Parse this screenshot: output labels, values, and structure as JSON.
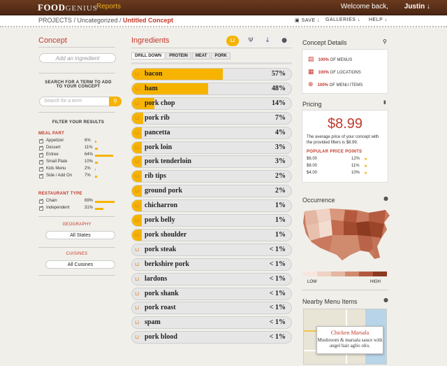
{
  "header": {
    "logo": "FOOD",
    "logo2": "GENIUS",
    "reports": "Reports",
    "welcome": "Welcome back,",
    "user": "Justin ↓"
  },
  "breadcrumb": {
    "root": "PROJECTS / Uncategorized / ",
    "current": "Untitled Concept"
  },
  "actions": {
    "save": "SAVE ↓",
    "galleries": "GALLERIES ↓",
    "help": "HELP ↓"
  },
  "concept": {
    "title": "Concept",
    "add_placeholder": "Add an ingredient",
    "search_hint": "SEARCH FOR A TERM TO ADD TO YOUR CONCEPT",
    "search_placeholder": "Search for a term",
    "filter_title": "FILTER YOUR RESULTS",
    "meal_part_title": "MEAL PART",
    "meal_part": [
      {
        "label": "Appetizer",
        "pct": "6%",
        "value": 6
      },
      {
        "label": "Dessert",
        "pct": "11%",
        "value": 11
      },
      {
        "label": "Entree",
        "pct": "64%",
        "value": 64
      },
      {
        "label": "Small Plate",
        "pct": "10%",
        "value": 10
      },
      {
        "label": "Kids Menu",
        "pct": "2%",
        "value": 2
      },
      {
        "label": "Side / Add On",
        "pct": "7%",
        "value": 7
      }
    ],
    "restaurant_type_title": "RESTAURANT TYPE",
    "restaurant_type": [
      {
        "label": "Chain",
        "pct": "69%",
        "value": 69
      },
      {
        "label": "Independent",
        "pct": "31%",
        "value": 31
      }
    ],
    "geography_title": "GEOGRAPHY",
    "geography_value": "All States",
    "cuisines_title": "CUISINES",
    "cuisines_value": "All Cuisines"
  },
  "ingredients": {
    "title": "Ingredients",
    "drill": [
      "DRILL DOWN",
      "PROTEIN",
      "MEAT",
      "PORK"
    ],
    "rows": [
      {
        "name": "bacon",
        "pct": "57%",
        "fill": 57
      },
      {
        "name": "ham",
        "pct": "48%",
        "fill": 48
      },
      {
        "name": "pork chop",
        "pct": "14%",
        "fill": 14
      },
      {
        "name": "pork rib",
        "pct": "7%",
        "fill": 7
      },
      {
        "name": "pancetta",
        "pct": "4%",
        "fill": 4
      },
      {
        "name": "pork loin",
        "pct": "3%",
        "fill": 3
      },
      {
        "name": "pork tenderloin",
        "pct": "3%",
        "fill": 3
      },
      {
        "name": "rib tips",
        "pct": "2%",
        "fill": 2
      },
      {
        "name": "ground pork",
        "pct": "2%",
        "fill": 2
      },
      {
        "name": "chicharron",
        "pct": "1%",
        "fill": 1
      },
      {
        "name": "pork belly",
        "pct": "1%",
        "fill": 1
      },
      {
        "name": "pork shoulder",
        "pct": "1%",
        "fill": 1
      },
      {
        "name": "pork steak",
        "pct": "< 1%",
        "fill": 0
      },
      {
        "name": "berkshire pork",
        "pct": "< 1%",
        "fill": 0
      },
      {
        "name": "lardons",
        "pct": "< 1%",
        "fill": 0
      },
      {
        "name": "pork shank",
        "pct": "< 1%",
        "fill": 0
      },
      {
        "name": "pork roast",
        "pct": "< 1%",
        "fill": 0
      },
      {
        "name": "spam",
        "pct": "< 1%",
        "fill": 0
      },
      {
        "name": "pork blood",
        "pct": "< 1%",
        "fill": 0
      }
    ]
  },
  "details": {
    "title": "Concept Details",
    "items": [
      {
        "strong": "100%",
        "text": " OF MENUS"
      },
      {
        "strong": "100%",
        "text": " OF LOCATIONS"
      },
      {
        "strong": "100%",
        "text": " OF MENU ITEMS"
      }
    ]
  },
  "pricing": {
    "title": "Pricing",
    "price": "$8.99",
    "desc": "The average price of your concept with the provided filters is $8.99.",
    "popular_title": "POPULAR PRICE POINTS",
    "points": [
      {
        "price": "$6.00",
        "pct": "12%"
      },
      {
        "price": "$8.00",
        "pct": "11%"
      },
      {
        "price": "$4.00",
        "pct": "10%"
      }
    ]
  },
  "occurrence": {
    "title": "Occurrence",
    "low": "LOW",
    "high": "HIGH"
  },
  "nearby": {
    "title": "Nearby Menu Items",
    "item": "Chicken Marsala",
    "desc": "Mushroom & marsala sauce with angel hair aglio olio."
  },
  "colors": {
    "accent": "#f6b300",
    "brand": "#c0392b",
    "bar_bg": "#e6e6e6"
  }
}
